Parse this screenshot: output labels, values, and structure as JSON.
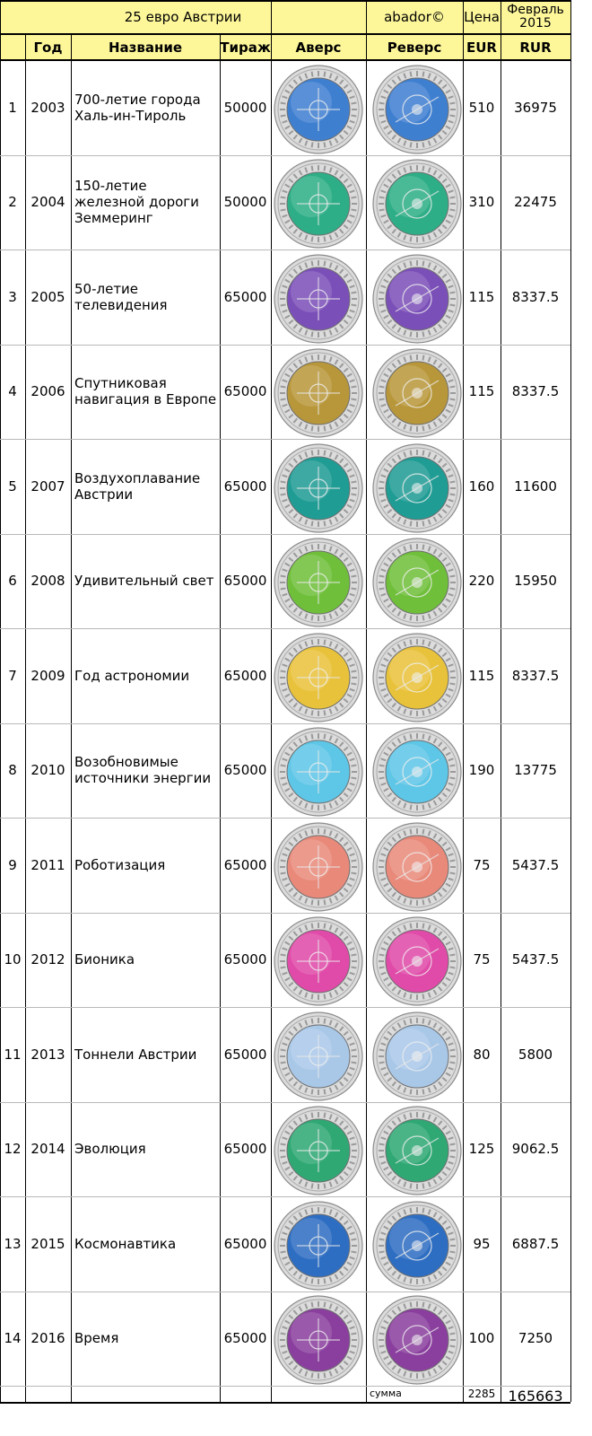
{
  "title_cell": "25 евро Австрии",
  "author_cell": "abador©",
  "price_header": "Цена",
  "date_header": "Февраль 2015",
  "headers": {
    "num": "",
    "year": "Год",
    "name": "Название",
    "mintage": "Тираж",
    "obverse": "Аверс",
    "reverse": "Реверс",
    "eur": "EUR",
    "rur": "RUR"
  },
  "rows": [
    {
      "num": "1",
      "year": "2003",
      "name": "700-летие города Халь-ин-Тироль",
      "mintage": "50000",
      "eur": "510",
      "rur": "36975",
      "color": "#3f7fd0"
    },
    {
      "num": "2",
      "year": "2004",
      "name": "150-летие железной дороги Земмеринг",
      "mintage": "50000",
      "eur": "310",
      "rur": "22475",
      "color": "#2eae86"
    },
    {
      "num": "3",
      "year": "2005",
      "name": "50-летие телевидения",
      "mintage": "65000",
      "eur": "115",
      "rur": "8337.5",
      "color": "#7b4fb8"
    },
    {
      "num": "4",
      "year": "2006",
      "name": "Спутниковая навигация в Европе",
      "mintage": "65000",
      "eur": "115",
      "rur": "8337.5",
      "color": "#b8973a"
    },
    {
      "num": "5",
      "year": "2007",
      "name": "Воздухоплавание Австрии",
      "mintage": "65000",
      "eur": "160",
      "rur": "11600",
      "color": "#1f9c94"
    },
    {
      "num": "6",
      "year": "2008",
      "name": "Удивительный свет",
      "mintage": "65000",
      "eur": "220",
      "rur": "15950",
      "color": "#6fbf3a"
    },
    {
      "num": "7",
      "year": "2009",
      "name": "Год астрономии",
      "mintage": "65000",
      "eur": "115",
      "rur": "8337.5",
      "color": "#e8c23a"
    },
    {
      "num": "8",
      "year": "2010",
      "name": "Возобновимые источники энергии",
      "mintage": "65000",
      "eur": "190",
      "rur": "13775",
      "color": "#5ec6e6"
    },
    {
      "num": "9",
      "year": "2011",
      "name": "Роботизация",
      "mintage": "65000",
      "eur": "75",
      "rur": "5437.5",
      "color": "#e8897a"
    },
    {
      "num": "10",
      "year": "2012",
      "name": "Бионика",
      "mintage": "65000",
      "eur": "75",
      "rur": "5437.5",
      "color": "#e04aa8"
    },
    {
      "num": "11",
      "year": "2013",
      "name": "Тоннели Австрии",
      "mintage": "65000",
      "eur": "80",
      "rur": "5800",
      "color": "#a9c8e8"
    },
    {
      "num": "12",
      "year": "2014",
      "name": "Эволюция",
      "mintage": "65000",
      "eur": "125",
      "rur": "9062.5",
      "color": "#2fa874"
    },
    {
      "num": "13",
      "year": "2015",
      "name": "Космонавтика",
      "mintage": "65000",
      "eur": "95",
      "rur": "6887.5",
      "color": "#2e6ec2"
    },
    {
      "num": "14",
      "year": "2016",
      "name": "Время",
      "mintage": "65000",
      "eur": "100",
      "rur": "7250",
      "color": "#8a3f9e"
    }
  ],
  "footer": {
    "label": "сумма",
    "eur_total": "2285",
    "rur_total": "165663"
  }
}
